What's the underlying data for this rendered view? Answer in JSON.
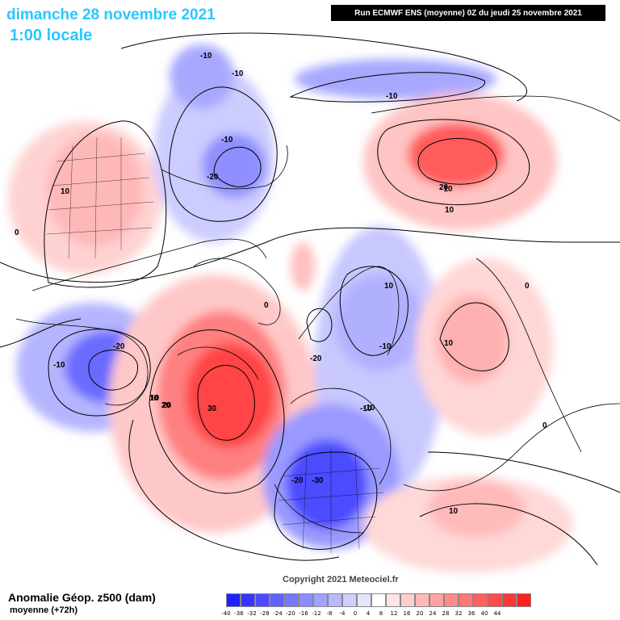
{
  "header": {
    "date_line": "dimanche 28 novembre 2021",
    "time_line": "1:00 locale",
    "run_info": "Run ECMWF ENS (moyenne) 0Z du jeudi 25 novembre 2021"
  },
  "map": {
    "contour_labels": [
      "-10",
      "-10",
      "-10",
      "-10",
      "-20",
      "10",
      "0",
      "-20",
      "-10",
      "10",
      "20",
      "0",
      "10",
      "-10",
      "-10",
      "-20",
      "-10",
      "20",
      "30",
      "10",
      "-10",
      "0",
      "-20",
      "-30",
      "10",
      "10",
      "20",
      "0",
      "10"
    ],
    "copyright": "Copyright 2021 Meteociel.fr"
  },
  "footer": {
    "title": "Anomalie Géop. z500 (dam)",
    "subtitle": "moyenne   (+72h)"
  },
  "scale": {
    "labels": [
      "-40",
      "-36",
      "-32",
      "-28",
      "-24",
      "-20",
      "-16",
      "-12",
      "-8",
      "-4",
      "0",
      "4",
      "8",
      "12",
      "16",
      "20",
      "24",
      "28",
      "32",
      "36",
      "40",
      "44"
    ],
    "colors": [
      "#1f1fff",
      "#3535ff",
      "#4a4aff",
      "#6060ff",
      "#7676ff",
      "#8c8cff",
      "#a2a2ff",
      "#b8b8ff",
      "#ceceff",
      "#e4e4ff",
      "#ffffff",
      "#ffe4e4",
      "#ffcece",
      "#ffb8b8",
      "#ffa2a2",
      "#ff8c8c",
      "#ff7676",
      "#ff6060",
      "#ff4a4a",
      "#ff3535",
      "#ff1f1f"
    ]
  }
}
